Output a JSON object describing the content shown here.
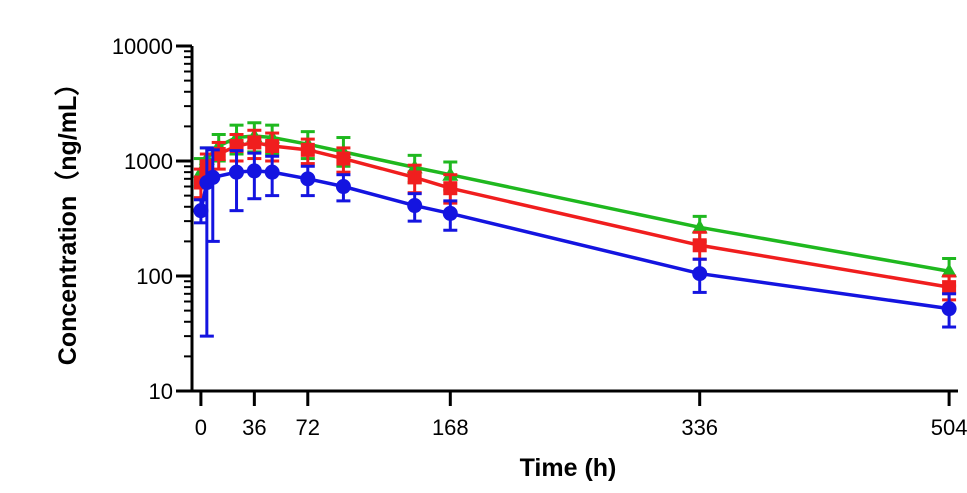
{
  "chart_data": {
    "type": "line",
    "title": "",
    "xlabel": "Time (h)",
    "ylabel": "Concentration（ng/mL）",
    "yscale": "log",
    "ylim": [
      10,
      10000
    ],
    "xlim": [
      -6,
      510
    ],
    "y_ticks": [
      10,
      100,
      1000,
      10000
    ],
    "y_tick_labels": [
      "10",
      "100",
      "1000",
      "10000"
    ],
    "x_ticks": [
      0,
      36,
      72,
      168,
      336,
      504
    ],
    "x_tick_labels": [
      "0",
      "36",
      "72",
      "168",
      "336",
      "504"
    ],
    "grid": false,
    "legend": "none",
    "error_bars": true,
    "series": [
      {
        "color": "#1fb81f",
        "marker": "triangle",
        "points": [
          {
            "x": 0,
            "y": 800,
            "lo": 600,
            "hi": 1050
          },
          {
            "x": 4,
            "y": 1050,
            "lo": 800,
            "hi": 1300
          },
          {
            "x": 12,
            "y": 1350,
            "lo": 1000,
            "hi": 1700
          },
          {
            "x": 24,
            "y": 1600,
            "lo": 1150,
            "hi": 2050
          },
          {
            "x": 36,
            "y": 1650,
            "lo": 1200,
            "hi": 2150
          },
          {
            "x": 48,
            "y": 1600,
            "lo": 1150,
            "hi": 2050
          },
          {
            "x": 72,
            "y": 1400,
            "lo": 1050,
            "hi": 1800
          },
          {
            "x": 96,
            "y": 1200,
            "lo": 900,
            "hi": 1600
          },
          {
            "x": 144,
            "y": 880,
            "lo": 650,
            "hi": 1120
          },
          {
            "x": 168,
            "y": 760,
            "lo": 560,
            "hi": 980
          },
          {
            "x": 336,
            "y": 265,
            "lo": 200,
            "hi": 330
          },
          {
            "x": 504,
            "y": 110,
            "lo": 82,
            "hi": 142
          }
        ]
      },
      {
        "color": "#f01e1e",
        "marker": "square",
        "points": [
          {
            "x": 0,
            "y": 650,
            "lo": 480,
            "hi": 850
          },
          {
            "x": 4,
            "y": 900,
            "lo": 650,
            "hi": 1150
          },
          {
            "x": 12,
            "y": 1150,
            "lo": 850,
            "hi": 1450
          },
          {
            "x": 24,
            "y": 1350,
            "lo": 1000,
            "hi": 1700
          },
          {
            "x": 36,
            "y": 1450,
            "lo": 1050,
            "hi": 1850
          },
          {
            "x": 48,
            "y": 1350,
            "lo": 1000,
            "hi": 1750
          },
          {
            "x": 72,
            "y": 1250,
            "lo": 950,
            "hi": 1550
          },
          {
            "x": 96,
            "y": 1050,
            "lo": 800,
            "hi": 1300
          },
          {
            "x": 144,
            "y": 720,
            "lo": 530,
            "hi": 920
          },
          {
            "x": 168,
            "y": 580,
            "lo": 430,
            "hi": 760
          },
          {
            "x": 336,
            "y": 185,
            "lo": 140,
            "hi": 240
          },
          {
            "x": 504,
            "y": 80,
            "lo": 62,
            "hi": 100
          }
        ]
      },
      {
        "color": "#1414e0",
        "marker": "circle",
        "points": [
          {
            "x": 0,
            "y": 370,
            "lo": 290,
            "hi": 460
          },
          {
            "x": 4,
            "y": 650,
            "lo": 30,
            "hi": 1300
          },
          {
            "x": 8,
            "y": 720,
            "lo": 200,
            "hi": 1250
          },
          {
            "x": 24,
            "y": 800,
            "lo": 370,
            "hi": 1230
          },
          {
            "x": 36,
            "y": 820,
            "lo": 470,
            "hi": 1170
          },
          {
            "x": 48,
            "y": 800,
            "lo": 500,
            "hi": 1100
          },
          {
            "x": 72,
            "y": 700,
            "lo": 500,
            "hi": 900
          },
          {
            "x": 96,
            "y": 600,
            "lo": 450,
            "hi": 760
          },
          {
            "x": 144,
            "y": 410,
            "lo": 300,
            "hi": 520
          },
          {
            "x": 168,
            "y": 350,
            "lo": 250,
            "hi": 450
          },
          {
            "x": 336,
            "y": 105,
            "lo": 72,
            "hi": 140
          },
          {
            "x": 504,
            "y": 52,
            "lo": 36,
            "hi": 70
          }
        ]
      }
    ]
  }
}
